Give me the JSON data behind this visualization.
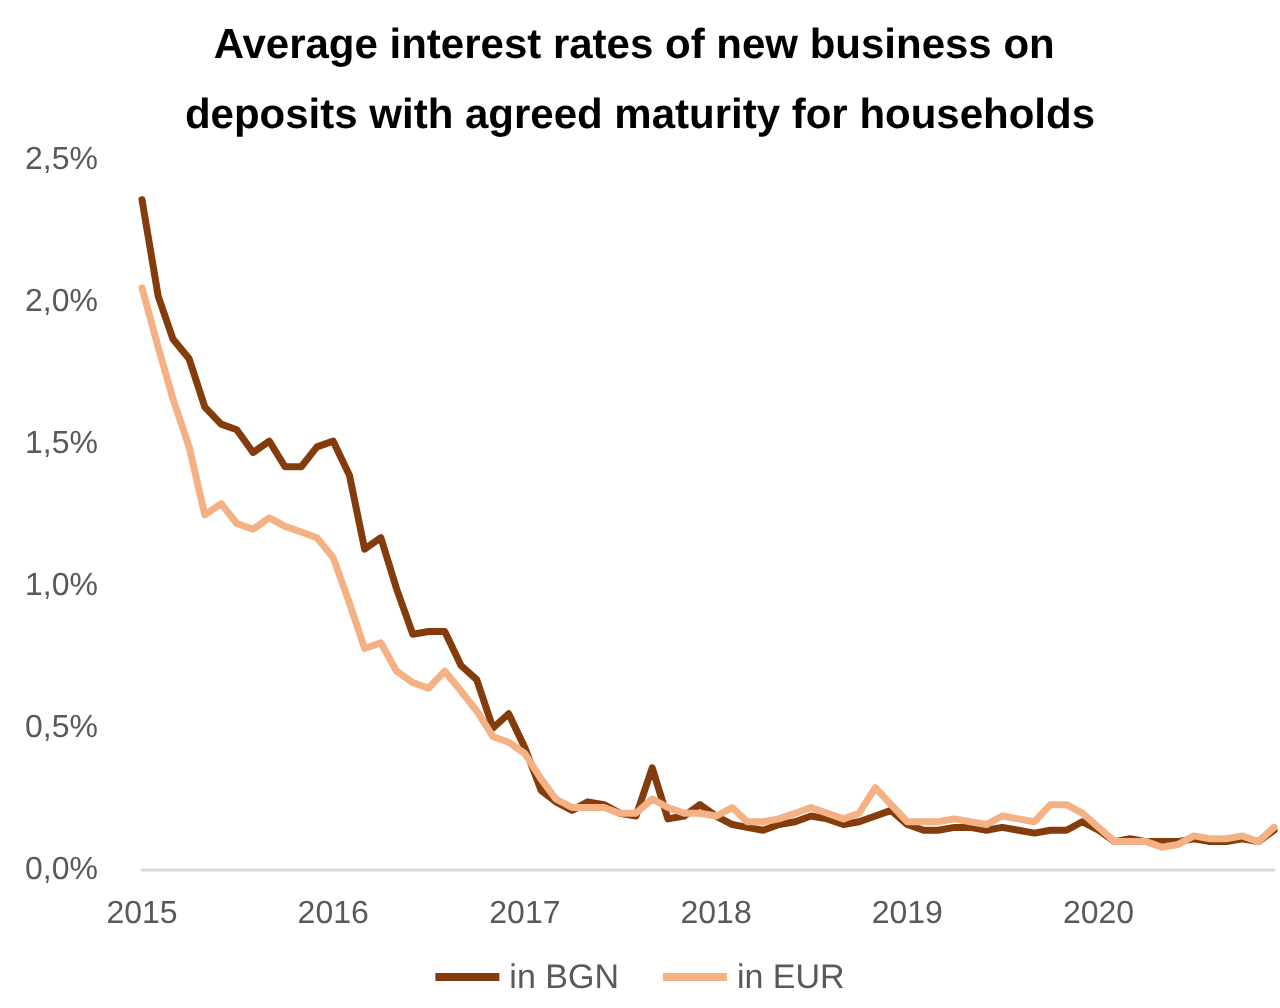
{
  "chart_data": {
    "type": "line",
    "title": "Average interest rates of new business on deposits with agreed maturity for households",
    "x": [
      "2015-01",
      "2015-02",
      "2015-03",
      "2015-04",
      "2015-05",
      "2015-06",
      "2015-07",
      "2015-08",
      "2015-09",
      "2015-10",
      "2015-11",
      "2015-12",
      "2016-01",
      "2016-02",
      "2016-03",
      "2016-04",
      "2016-05",
      "2016-06",
      "2016-07",
      "2016-08",
      "2016-09",
      "2016-10",
      "2016-11",
      "2016-12",
      "2017-01",
      "2017-02",
      "2017-03",
      "2017-04",
      "2017-05",
      "2017-06",
      "2017-07",
      "2017-08",
      "2017-09",
      "2017-10",
      "2017-11",
      "2017-12",
      "2018-01",
      "2018-02",
      "2018-03",
      "2018-04",
      "2018-05",
      "2018-06",
      "2018-07",
      "2018-08",
      "2018-09",
      "2018-10",
      "2018-11",
      "2018-12",
      "2019-01",
      "2019-02",
      "2019-03",
      "2019-04",
      "2019-05",
      "2019-06",
      "2019-07",
      "2019-08",
      "2019-09",
      "2019-10",
      "2019-11",
      "2019-12",
      "2020-01",
      "2020-02",
      "2020-03",
      "2020-04",
      "2020-05",
      "2020-06",
      "2020-07",
      "2020-08",
      "2020-09",
      "2020-10",
      "2020-11",
      "2020-12"
    ],
    "series": [
      {
        "name": "in BGN",
        "color": "#843c0c",
        "values": [
          2.36,
          2.02,
          1.87,
          1.8,
          1.63,
          1.57,
          1.55,
          1.47,
          1.51,
          1.42,
          1.42,
          1.49,
          1.51,
          1.39,
          1.13,
          1.17,
          0.99,
          0.83,
          0.84,
          0.84,
          0.72,
          0.67,
          0.5,
          0.55,
          0.43,
          0.28,
          0.24,
          0.21,
          0.24,
          0.23,
          0.2,
          0.19,
          0.36,
          0.18,
          0.19,
          0.23,
          0.19,
          0.16,
          0.15,
          0.14,
          0.16,
          0.17,
          0.19,
          0.18,
          0.16,
          0.17,
          0.19,
          0.21,
          0.16,
          0.14,
          0.14,
          0.15,
          0.15,
          0.14,
          0.15,
          0.14,
          0.13,
          0.14,
          0.14,
          0.17,
          0.14,
          0.1,
          0.11,
          0.1,
          0.1,
          0.1,
          0.11,
          0.1,
          0.1,
          0.11,
          0.1,
          0.14
        ]
      },
      {
        "name": "in EUR",
        "color": "#f4b183",
        "values": [
          2.05,
          1.84,
          1.66,
          1.49,
          1.25,
          1.29,
          1.22,
          1.2,
          1.24,
          1.21,
          1.19,
          1.17,
          1.1,
          0.94,
          0.78,
          0.8,
          0.7,
          0.66,
          0.64,
          0.7,
          0.63,
          0.56,
          0.47,
          0.45,
          0.41,
          0.32,
          0.25,
          0.22,
          0.22,
          0.22,
          0.2,
          0.2,
          0.25,
          0.22,
          0.2,
          0.2,
          0.19,
          0.22,
          0.17,
          0.17,
          0.18,
          0.2,
          0.22,
          0.2,
          0.18,
          0.2,
          0.29,
          0.23,
          0.17,
          0.17,
          0.17,
          0.18,
          0.17,
          0.16,
          0.19,
          0.18,
          0.17,
          0.23,
          0.23,
          0.2,
          0.15,
          0.1,
          0.1,
          0.1,
          0.08,
          0.09,
          0.12,
          0.11,
          0.11,
          0.12,
          0.1,
          0.15
        ]
      }
    ],
    "xlim": [
      "2015-01",
      "2020-12"
    ],
    "xticks": [
      "2015",
      "2016",
      "2017",
      "2018",
      "2019",
      "2020"
    ],
    "ylim": [
      0,
      2.5
    ],
    "yticks": [
      {
        "value": 0,
        "label": "0,0%"
      },
      {
        "value": 0.5,
        "label": "0,5%"
      },
      {
        "value": 1,
        "label": "1,0%"
      },
      {
        "value": 1.5,
        "label": "1,5%"
      },
      {
        "value": 2,
        "label": "2,0%"
      },
      {
        "value": 2.5,
        "label": "2,5%"
      }
    ],
    "grid": false,
    "legend": "bottom",
    "marker": "none",
    "line_style": "solid"
  }
}
